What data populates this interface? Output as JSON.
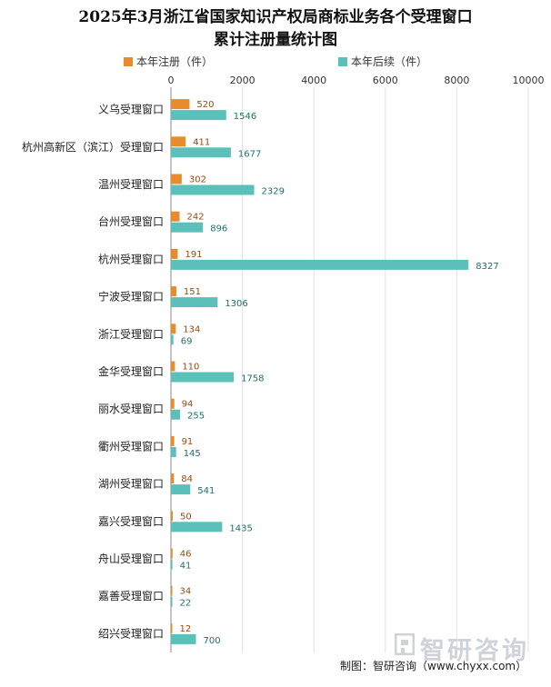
{
  "chart_data": {
    "type": "bar",
    "orientation": "horizontal",
    "title": "2025年3月浙江省国家知识产权局商标业务各个受理窗口",
    "subtitle": "累计注册量统计图",
    "categories": [
      "义乌受理窗口",
      "杭州高新区（滨江）受理窗口",
      "温州受理窗口",
      "台州受理窗口",
      "杭州受理窗口",
      "宁波受理窗口",
      "浙江受理窗口",
      "金华受理窗口",
      "丽水受理窗口",
      "衢州受理窗口",
      "湖州受理窗口",
      "嘉兴受理窗口",
      "舟山受理窗口",
      "嘉善受理窗口",
      "绍兴受理窗口"
    ],
    "series": [
      {
        "name": "本年注册（件）",
        "color": "#E88B2E",
        "label_color": "#9a4a10",
        "values": [
          520,
          411,
          302,
          242,
          191,
          151,
          134,
          110,
          94,
          91,
          84,
          50,
          46,
          34,
          12
        ]
      },
      {
        "name": "本年后续（件）",
        "color": "#5BBFBA",
        "label_color": "#1f6f6b",
        "values": [
          1546,
          1677,
          2329,
          896,
          8327,
          1306,
          69,
          1758,
          255,
          145,
          541,
          1435,
          41,
          22,
          700
        ]
      }
    ],
    "xlim": [
      0,
      10000
    ],
    "xticks": [
      "0",
      "2000",
      "4000",
      "6000",
      "8000",
      "10000"
    ],
    "legend_position": "top",
    "grid": true
  },
  "source": "制图：智研咨询（www.chyxx.com）",
  "watermark": "智研咨询"
}
